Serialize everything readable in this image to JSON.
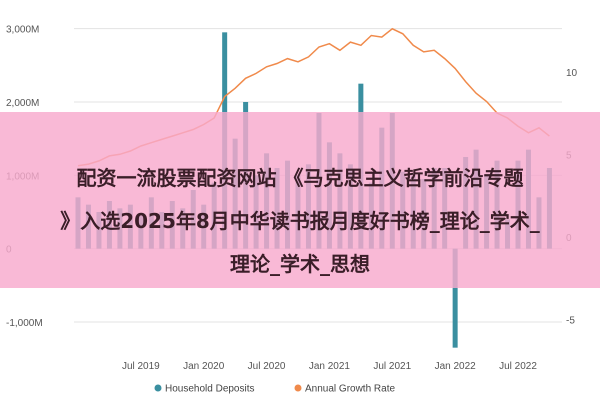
{
  "chart_data": {
    "type": "bar+line",
    "x_ticks": [
      "Jul 2019",
      "Jan 2020",
      "Jul 2020",
      "Jan 2021",
      "Jul 2021",
      "Jan 2022",
      "Jul 2022"
    ],
    "y_left_ticks": [
      "3,000M",
      "2,000M",
      "1,000M",
      "0",
      "-1,000M"
    ],
    "y_left_lim": [
      -1300,
      3200
    ],
    "y_right_ticks": [
      "10",
      "5",
      "0",
      "-5"
    ],
    "y_right_lim": [
      -6.5,
      13.5
    ],
    "series": [
      {
        "name": "Household Deposits",
        "type": "bar",
        "color": "#3a8fa0",
        "axis": "left",
        "x": [
          "2019-01",
          "2019-02",
          "2019-03",
          "2019-04",
          "2019-05",
          "2019-06",
          "2019-07",
          "2019-08",
          "2019-09",
          "2019-10",
          "2019-11",
          "2019-12",
          "2020-01",
          "2020-02",
          "2020-03",
          "2020-04",
          "2020-05",
          "2020-06",
          "2020-07",
          "2020-08",
          "2020-09",
          "2020-10",
          "2020-11",
          "2020-12",
          "2021-01",
          "2021-02",
          "2021-03",
          "2021-04",
          "2021-05",
          "2021-06",
          "2021-07",
          "2021-08",
          "2021-09",
          "2021-10",
          "2021-11",
          "2021-12",
          "2022-01",
          "2022-02",
          "2022-03",
          "2022-04",
          "2022-05",
          "2022-06",
          "2022-07",
          "2022-08",
          "2022-09",
          "2022-10"
        ],
        "values": [
          700,
          600,
          500,
          650,
          550,
          600,
          450,
          700,
          500,
          650,
          550,
          800,
          600,
          900,
          2950,
          1500,
          2000,
          1000,
          1300,
          1100,
          1200,
          1000,
          1150,
          1850,
          1450,
          1300,
          1150,
          2250,
          900,
          1650,
          1850,
          1050,
          1000,
          950,
          1100,
          1100,
          -1350,
          1250,
          1350,
          1000,
          1200,
          400,
          1200,
          1350,
          700,
          1100
        ]
      },
      {
        "name": "Annual Growth Rate",
        "type": "line",
        "color": "#f08a4b",
        "axis": "right",
        "x": [
          "2019-01",
          "2019-02",
          "2019-03",
          "2019-04",
          "2019-05",
          "2019-06",
          "2019-07",
          "2019-08",
          "2019-09",
          "2019-10",
          "2019-11",
          "2019-12",
          "2020-01",
          "2020-02",
          "2020-03",
          "2020-04",
          "2020-05",
          "2020-06",
          "2020-07",
          "2020-08",
          "2020-09",
          "2020-10",
          "2020-11",
          "2020-12",
          "2021-01",
          "2021-02",
          "2021-03",
          "2021-04",
          "2021-05",
          "2021-06",
          "2021-07",
          "2021-08",
          "2021-09",
          "2021-10",
          "2021-11",
          "2021-12",
          "2022-01",
          "2022-02",
          "2022-03",
          "2022-04",
          "2022-05",
          "2022-06",
          "2022-07",
          "2022-08",
          "2022-09",
          "2022-10"
        ],
        "values": [
          4.3,
          4.4,
          4.6,
          4.9,
          5.0,
          5.2,
          5.5,
          5.7,
          5.9,
          6.1,
          6.3,
          6.5,
          6.8,
          7.2,
          8.5,
          9.0,
          9.6,
          9.9,
          10.3,
          10.5,
          10.8,
          10.6,
          10.9,
          11.5,
          11.7,
          11.3,
          11.8,
          11.6,
          12.2,
          12.1,
          12.6,
          12.3,
          11.6,
          11.2,
          11.3,
          10.8,
          10.2,
          9.4,
          8.7,
          8.2,
          7.5,
          7.2,
          6.7,
          6.3,
          6.6,
          6.1
        ]
      }
    ],
    "legend_position": "bottom",
    "grid": "horizontal"
  },
  "overlay": {
    "line1": "配资一流股票配资网站 《马克思主义哲学前沿专题",
    "line2": "》入选2025年8月中华读书报月度好书榜_理论_学术_",
    "line3": "理论_学术_思想"
  }
}
